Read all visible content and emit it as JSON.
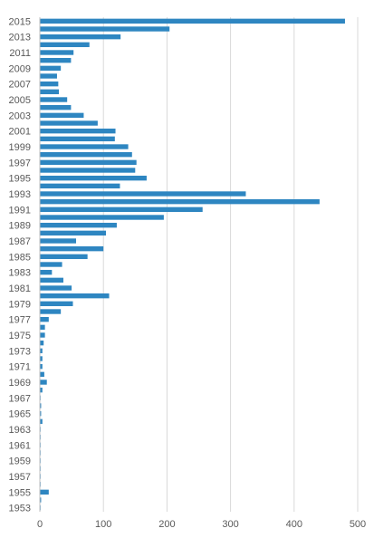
{
  "chart_data": {
    "type": "bar",
    "orientation": "horizontal",
    "title": "",
    "xlabel": "",
    "ylabel": "",
    "xlim": [
      0,
      500
    ],
    "x_ticks": [
      0,
      100,
      200,
      300,
      400,
      500
    ],
    "grid": "vertical",
    "legend": "none",
    "color": "#2e86c1",
    "categories": [
      "1953",
      "1954",
      "1955",
      "1956",
      "1957",
      "1958",
      "1959",
      "1960",
      "1961",
      "1962",
      "1963",
      "1964",
      "1965",
      "1966",
      "1967",
      "1968",
      "1969",
      "1970",
      "1971",
      "1972",
      "1973",
      "1974",
      "1975",
      "1976",
      "1977",
      "1978",
      "1979",
      "1980",
      "1981",
      "1982",
      "1983",
      "1984",
      "1985",
      "1986",
      "1987",
      "1988",
      "1989",
      "1990",
      "1991",
      "1992",
      "1993",
      "1994",
      "1995",
      "1996",
      "1997",
      "1998",
      "1999",
      "2000",
      "2001",
      "2002",
      "2003",
      "2004",
      "2005",
      "2006",
      "2007",
      "2008",
      "2009",
      "2010",
      "2011",
      "2012",
      "2013",
      "2014",
      "2015"
    ],
    "category_labels_shown": [
      "1953",
      "1955",
      "1957",
      "1959",
      "1961",
      "1963",
      "1965",
      "1967",
      "1969",
      "1971",
      "1973",
      "1975",
      "1977",
      "1979",
      "1981",
      "1983",
      "1985",
      "1987",
      "1989",
      "1991",
      "1993",
      "1995",
      "1997",
      "1999",
      "2001",
      "2003",
      "2005",
      "2007",
      "2009",
      "2011",
      "2013",
      "2015"
    ],
    "values": [
      1,
      2,
      14,
      1,
      1,
      1,
      1,
      1,
      1,
      1,
      1,
      4,
      2,
      2,
      1,
      4,
      11,
      7,
      4,
      4,
      4,
      6,
      8,
      8,
      14,
      33,
      52,
      109,
      50,
      37,
      19,
      35,
      75,
      100,
      57,
      104,
      121,
      195,
      256,
      440,
      324,
      126,
      168,
      150,
      152,
      145,
      139,
      118,
      119,
      91,
      69,
      49,
      43,
      30,
      29,
      27,
      33,
      49,
      53,
      78,
      127,
      204,
      480
    ]
  }
}
